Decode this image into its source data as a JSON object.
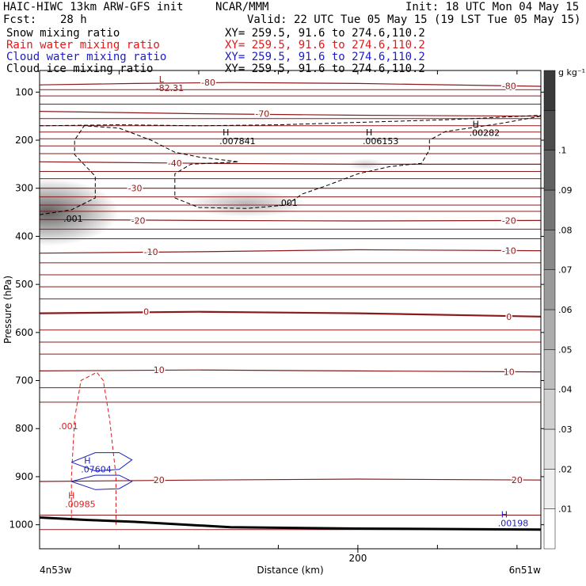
{
  "header": {
    "model": "HAIC-HIWC 13km ARW-GFS init",
    "org": "NCAR/MMM",
    "init": "Init: 18 UTC Mon 04 May 15",
    "fcst_label": "Fcst:",
    "fcst_value": "28 h",
    "valid": "Valid: 22 UTC Tue 05 May 15 (19 LST Tue 05 May 15)"
  },
  "fields": [
    {
      "name": "Snow mixing ratio",
      "xy": "XY= 259.5, 91.6 to 274.6,110.2",
      "color": "#000000"
    },
    {
      "name": "Rain water mixing ratio",
      "xy": "XY= 259.5, 91.6 to 274.6,110.2",
      "color": "#e0191b"
    },
    {
      "name": "Cloud water mixing ratio",
      "xy": "XY= 259.5, 91.6 to 274.6,110.2",
      "color": "#1c1cc8"
    },
    {
      "name": "Cloud ice mixing ratio",
      "xy": "XY= 259.5, 91.6 to 274.6,110.2",
      "color": "#000000"
    }
  ],
  "chart_data": {
    "type": "heatmap",
    "xlabel": "Distance (km)",
    "ylabel": "Pressure (hPa)",
    "xlim": [
      0,
      315
    ],
    "ylim": [
      1050,
      55
    ],
    "x_ticks": [
      {
        "value": 200,
        "label": "200"
      }
    ],
    "y_ticks": [
      100,
      200,
      300,
      400,
      500,
      600,
      700,
      800,
      900,
      1000
    ],
    "x_end_labels": {
      "left": "4n53w",
      "right": "6n51w"
    },
    "colorbar": {
      "unit": "g kg⁻¹",
      "ticks": [
        ".01",
        ".02",
        ".03",
        ".04",
        ".05",
        ".06",
        ".07",
        ".08",
        ".09",
        ".1"
      ],
      "colors": [
        "#ffffff",
        "#f0f0f0",
        "#e0e0e0",
        "#d0d0d0",
        "#bebebe",
        "#acacac",
        "#9a9a9a",
        "#888888",
        "#747474",
        "#606060",
        "#4c4c4c",
        "#3a3a3a"
      ]
    },
    "snow_blobs": [
      {
        "x": 5,
        "p": 350,
        "rx": 45,
        "rp": 70,
        "peak": 0.11
      },
      {
        "x": 130,
        "p": 332,
        "rx": 38,
        "rp": 28,
        "peak": 0.05
      },
      {
        "x": 205,
        "p": 250,
        "rx": 12,
        "rp": 12,
        "peak": 0.03
      }
    ],
    "temperature_contours": [
      {
        "label": "-80",
        "points": [
          [
            0,
            85
          ],
          [
            60,
            82
          ],
          [
            120,
            80
          ],
          [
            200,
            82
          ],
          [
            315,
            88
          ]
        ],
        "label_at": [
          [
            106,
            80
          ],
          [
            295,
            87
          ]
        ]
      },
      {
        "label": "-70",
        "points": [
          [
            0,
            140
          ],
          [
            100,
            145
          ],
          [
            200,
            148
          ],
          [
            315,
            150
          ]
        ],
        "label_at": [
          [
            140,
            145
          ]
        ]
      },
      {
        "label": "-40",
        "points": [
          [
            0,
            245
          ],
          [
            100,
            248
          ],
          [
            200,
            250
          ],
          [
            315,
            250
          ]
        ],
        "label_at": [
          [
            85,
            248
          ]
        ]
      },
      {
        "label": "-30",
        "points": [
          [
            0,
            300
          ],
          [
            100,
            300
          ],
          [
            200,
            300
          ],
          [
            315,
            300
          ]
        ],
        "label_at": [
          [
            60,
            300
          ]
        ]
      },
      {
        "label": "-20",
        "points": [
          [
            0,
            365
          ],
          [
            100,
            367
          ],
          [
            200,
            368
          ],
          [
            315,
            367
          ]
        ],
        "label_at": [
          [
            62,
            367
          ],
          [
            295,
            367
          ]
        ]
      },
      {
        "label": "-10",
        "points": [
          [
            0,
            435
          ],
          [
            100,
            432
          ],
          [
            200,
            428
          ],
          [
            315,
            430
          ]
        ],
        "label_at": [
          [
            70,
            432
          ],
          [
            295,
            430
          ]
        ]
      },
      {
        "label": "0",
        "points": [
          [
            0,
            560
          ],
          [
            100,
            557
          ],
          [
            200,
            560
          ],
          [
            315,
            567
          ]
        ],
        "label_at": [
          [
            67,
            557
          ],
          [
            295,
            567
          ]
        ]
      },
      {
        "label": "10",
        "points": [
          [
            0,
            680
          ],
          [
            100,
            678
          ],
          [
            200,
            680
          ],
          [
            315,
            682
          ]
        ],
        "label_at": [
          [
            75,
            678
          ],
          [
            295,
            682
          ]
        ]
      },
      {
        "label": "20",
        "points": [
          [
            0,
            910
          ],
          [
            100,
            907
          ],
          [
            200,
            905
          ],
          [
            315,
            907
          ]
        ],
        "label_at": [
          [
            75,
            907
          ],
          [
            300,
            907
          ]
        ]
      }
    ],
    "extra_contour_levels": [
      95,
      108,
      125,
      155,
      170,
      183,
      197,
      212,
      228,
      265,
      280,
      318,
      335,
      348,
      385,
      405,
      455,
      480,
      505,
      530,
      595,
      620,
      645,
      715,
      745,
      980,
      1010
    ],
    "snow_contour_001": {
      "label": ".001",
      "points": [
        [
          0,
          355
        ],
        [
          20,
          345
        ],
        [
          35,
          320
        ],
        [
          35,
          275
        ],
        [
          22,
          230
        ],
        [
          22,
          200
        ],
        [
          28,
          170
        ],
        [
          50,
          175
        ],
        [
          70,
          200
        ],
        [
          85,
          225
        ],
        [
          100,
          235
        ],
        [
          125,
          245
        ],
        [
          95,
          250
        ],
        [
          85,
          270
        ],
        [
          85,
          320
        ],
        [
          100,
          340
        ],
        [
          130,
          342
        ],
        [
          155,
          335
        ],
        [
          165,
          312
        ],
        [
          180,
          295
        ],
        [
          200,
          270
        ],
        [
          220,
          255
        ],
        [
          240,
          248
        ],
        [
          245,
          220
        ],
        [
          245,
          200
        ],
        [
          255,
          182
        ],
        [
          270,
          175
        ],
        [
          290,
          165
        ],
        [
          315,
          150
        ]
      ],
      "label_at": [
        [
          150,
          330
        ],
        [
          15,
          363
        ]
      ]
    },
    "ice_contour_001": {
      "points": [
        [
          0,
          170
        ],
        [
          50,
          168
        ],
        [
          100,
          170
        ],
        [
          150,
          168
        ],
        [
          200,
          163
        ],
        [
          260,
          157
        ],
        [
          315,
          148
        ]
      ]
    },
    "rain_contour_001": {
      "label": ".001",
      "points": [
        [
          20,
          990
        ],
        [
          20,
          900
        ],
        [
          22,
          780
        ],
        [
          26,
          700
        ],
        [
          36,
          683
        ],
        [
          40,
          700
        ],
        [
          44,
          780
        ],
        [
          48,
          900
        ],
        [
          48,
          1000
        ]
      ],
      "label_at": [
        [
          12,
          795
        ]
      ]
    },
    "cloudwater_contours": [
      {
        "points": [
          [
            20,
            870
          ],
          [
            35,
            850
          ],
          [
            50,
            850
          ],
          [
            58,
            865
          ],
          [
            50,
            885
          ],
          [
            35,
            888
          ],
          [
            20,
            870
          ]
        ]
      },
      {
        "points": [
          [
            20,
            910
          ],
          [
            35,
            897
          ],
          [
            50,
            897
          ],
          [
            58,
            910
          ],
          [
            50,
            925
          ],
          [
            35,
            927
          ],
          [
            20,
            910
          ]
        ]
      }
    ],
    "terrain": {
      "points": [
        [
          0,
          985
        ],
        [
          30,
          990
        ],
        [
          60,
          994
        ],
        [
          120,
          1005
        ],
        [
          200,
          1008
        ],
        [
          315,
          1010
        ]
      ]
    },
    "max_markers": [
      {
        "symbol": "L",
        "value": "-82.31",
        "x": 75,
        "p": 80,
        "color": "#8b1a1a"
      },
      {
        "symbol": "H",
        "value": ".007841",
        "x": 115,
        "p": 190,
        "color": "#000000"
      },
      {
        "symbol": "H",
        "value": ".006153",
        "x": 205,
        "p": 190,
        "color": "#000000"
      },
      {
        "symbol": "H",
        "value": ".00282",
        "x": 272,
        "p": 173,
        "color": "#000000"
      },
      {
        "symbol": "H",
        "value": ".07604",
        "x": 28,
        "p": 873,
        "color": "#1c1cc8"
      },
      {
        "symbol": "H",
        "value": ".00985",
        "x": 18,
        "p": 945,
        "color": "#e0191b"
      },
      {
        "symbol": "H",
        "value": ".00198",
        "x": 290,
        "p": 985,
        "color": "#1c1cc8"
      }
    ]
  }
}
